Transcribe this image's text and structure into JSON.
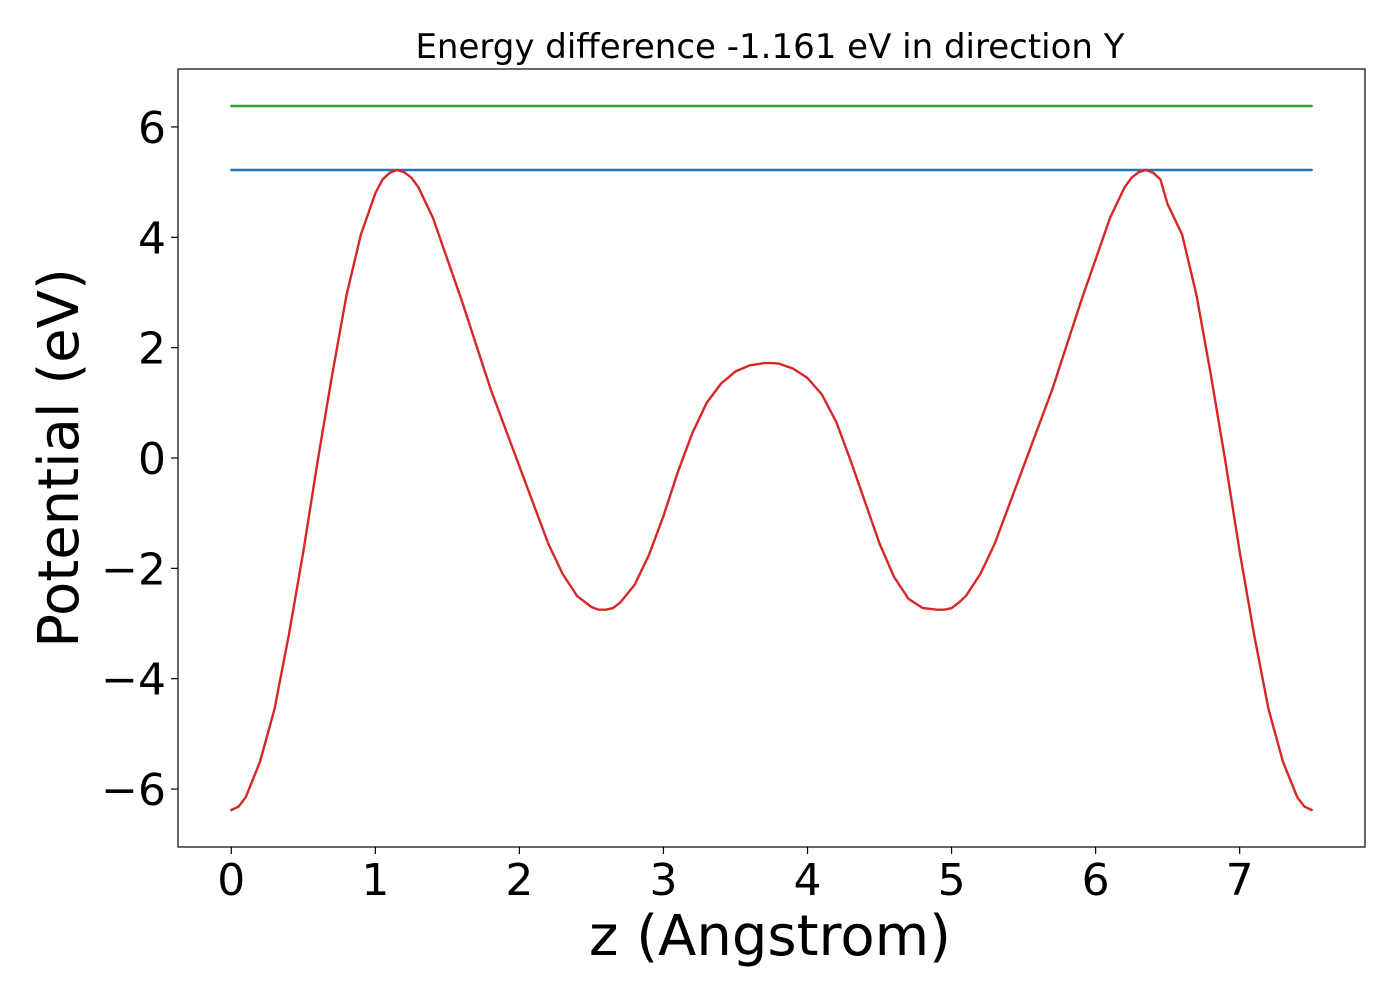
{
  "chart_data": {
    "type": "line",
    "title": "Energy difference -1.161 eV in direction Y",
    "xlabel": "z (Angstrom)",
    "ylabel": "Potential (eV)",
    "xlim": [
      -0.37,
      7.87
    ],
    "ylim": [
      -7.05,
      7.05
    ],
    "x_ticks": [
      0,
      1,
      2,
      3,
      4,
      5,
      6,
      7
    ],
    "y_ticks": [
      -6,
      -4,
      -2,
      0,
      2,
      4,
      6
    ],
    "x_tick_labels": [
      "0",
      "1",
      "2",
      "3",
      "4",
      "5",
      "6",
      "7"
    ],
    "y_tick_labels": [
      "−6",
      "−4",
      "−2",
      "0",
      "2",
      "4",
      "6"
    ],
    "grid": false,
    "legend": "none",
    "series": [
      {
        "color": "#2ca02c",
        "x": [
          0,
          7.5
        ],
        "y": [
          6.38,
          6.38
        ]
      },
      {
        "color": "#1f77b4",
        "x": [
          0,
          7.5
        ],
        "y": [
          5.22,
          5.22
        ]
      },
      {
        "color": "#d62728",
        "x": [
          0,
          0.05,
          0.1,
          0.2,
          0.3,
          0.4,
          0.5,
          0.6,
          0.7,
          0.8,
          0.9,
          1.0,
          1.05,
          1.1,
          1.15,
          1.2,
          1.25,
          1.3,
          1.4,
          1.5,
          1.6,
          1.7,
          1.8,
          1.9,
          2.0,
          2.1,
          2.2,
          2.3,
          2.4,
          2.5,
          2.55,
          2.6,
          2.65,
          2.7,
          2.8,
          2.9,
          3.0,
          3.1,
          3.2,
          3.3,
          3.4,
          3.5,
          3.6,
          3.7,
          3.75,
          3.8,
          3.9,
          4.0,
          4.1,
          4.2,
          4.3,
          4.4,
          4.5,
          4.6,
          4.7,
          4.8,
          4.9,
          4.95,
          5.0,
          5.05,
          5.1,
          5.2,
          5.3,
          5.4,
          5.5,
          5.6,
          5.7,
          5.8,
          5.9,
          6.0,
          6.1,
          6.2,
          6.25,
          6.3,
          6.35,
          6.4,
          6.45,
          6.5,
          6.6,
          6.7,
          6.8,
          6.9,
          7.0,
          7.1,
          7.2,
          7.3,
          7.4,
          7.45,
          7.5
        ],
        "y": [
          -6.38,
          -6.32,
          -6.15,
          -5.5,
          -4.55,
          -3.2,
          -1.7,
          -0.05,
          1.5,
          2.95,
          4.05,
          4.8,
          5.05,
          5.17,
          5.22,
          5.18,
          5.08,
          4.9,
          4.35,
          3.6,
          2.85,
          2.05,
          1.25,
          0.55,
          -0.15,
          -0.85,
          -1.55,
          -2.1,
          -2.5,
          -2.7,
          -2.75,
          -2.75,
          -2.72,
          -2.62,
          -2.3,
          -1.75,
          -1.05,
          -0.25,
          0.45,
          1.0,
          1.35,
          1.57,
          1.68,
          1.72,
          1.72,
          1.71,
          1.62,
          1.45,
          1.15,
          0.65,
          -0.05,
          -0.8,
          -1.55,
          -2.15,
          -2.55,
          -2.72,
          -2.75,
          -2.75,
          -2.72,
          -2.62,
          -2.5,
          -2.1,
          -1.55,
          -0.85,
          -0.15,
          0.55,
          1.25,
          2.05,
          2.85,
          3.6,
          4.35,
          4.9,
          5.08,
          5.18,
          5.22,
          5.17,
          5.05,
          4.6,
          4.05,
          2.95,
          1.5,
          -0.05,
          -1.7,
          -3.2,
          -4.55,
          -5.5,
          -6.15,
          -6.32,
          -6.38
        ]
      }
    ]
  }
}
